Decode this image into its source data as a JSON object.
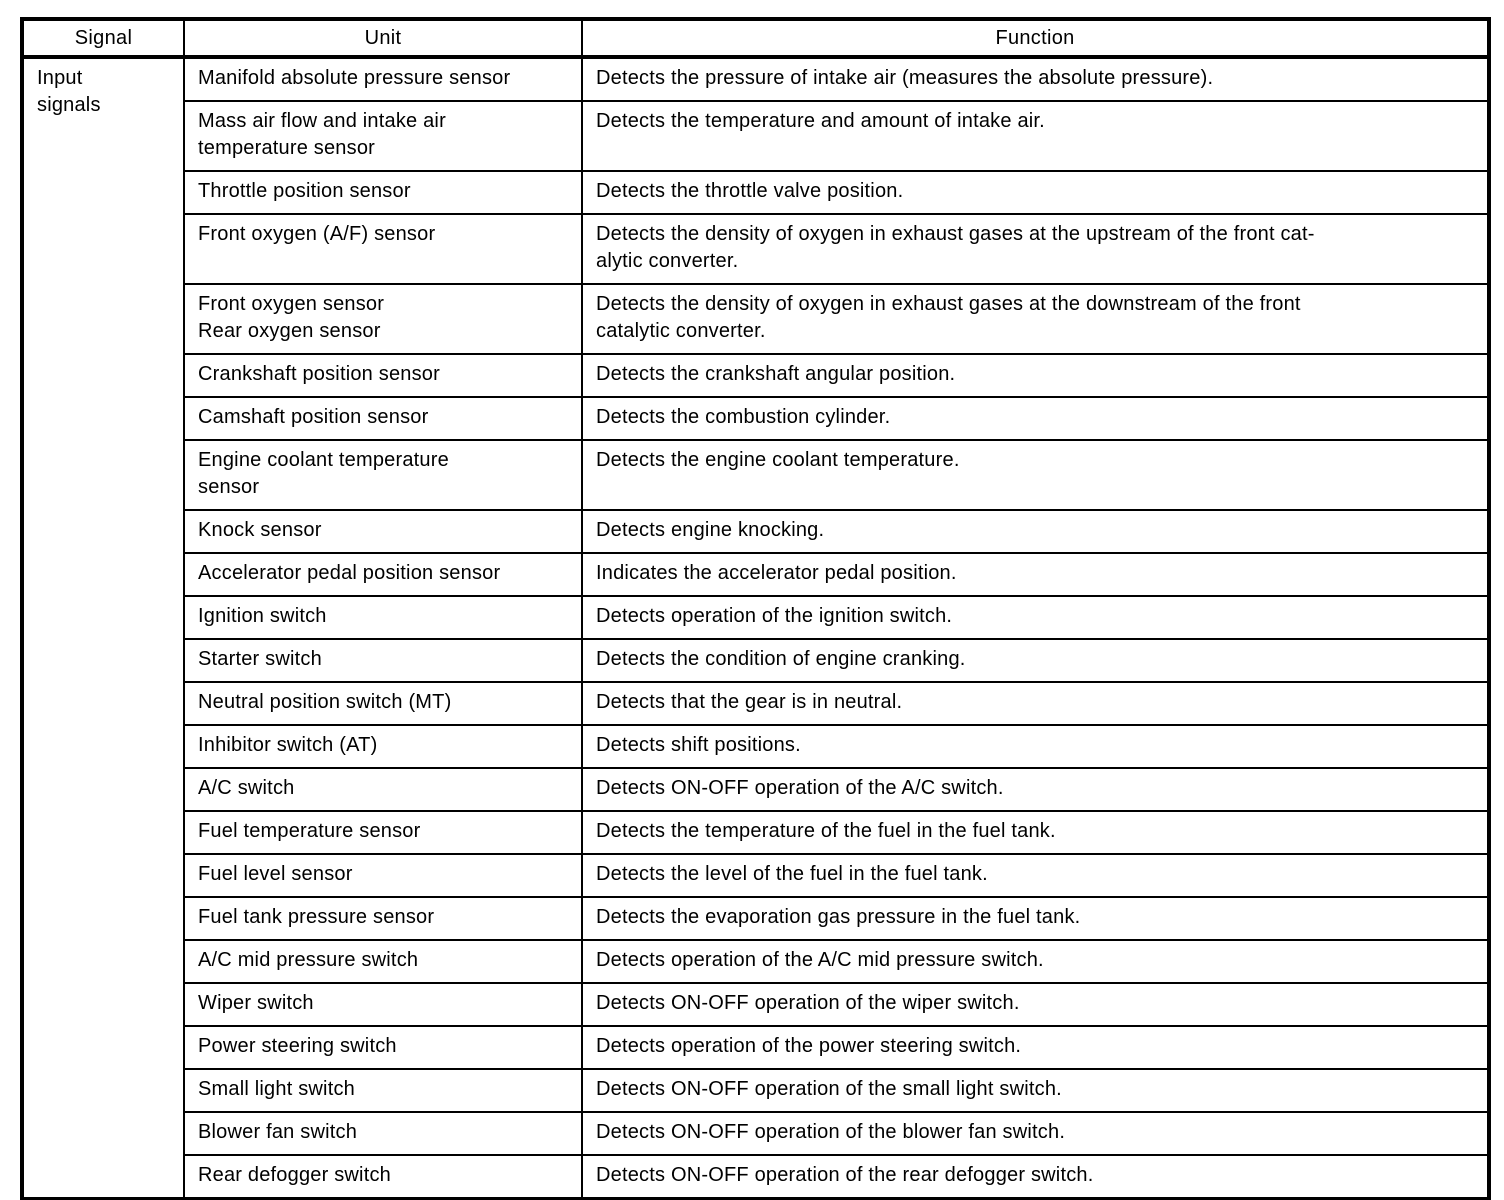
{
  "table": {
    "columns": [
      "Signal",
      "Unit",
      "Function"
    ],
    "signal_group": [
      "Input",
      "signals"
    ],
    "rows": [
      {
        "unit": "Manifold absolute pressure sensor",
        "function": "Detects the pressure of intake air (measures the absolute pressure)."
      },
      {
        "unit": [
          "Mass air flow and intake air",
          "temperature sensor"
        ],
        "function": "Detects the temperature and amount of intake air."
      },
      {
        "unit": "Throttle position sensor",
        "function": "Detects the throttle valve position."
      },
      {
        "unit": "Front oxygen (A/F) sensor",
        "function": [
          "Detects the density of oxygen in exhaust gases at the upstream of the front cat-",
          "alytic converter."
        ]
      },
      {
        "unit": [
          "Front oxygen sensor",
          "Rear oxygen sensor"
        ],
        "function": [
          "Detects the density of oxygen in exhaust gases at the downstream of the front",
          "catalytic converter."
        ]
      },
      {
        "unit": "Crankshaft position sensor",
        "function": "Detects the crankshaft angular position."
      },
      {
        "unit": "Camshaft position sensor",
        "function": "Detects the combustion cylinder."
      },
      {
        "unit": [
          "Engine coolant temperature",
          "sensor"
        ],
        "function": "Detects the engine coolant temperature."
      },
      {
        "unit": "Knock sensor",
        "function": "Detects engine knocking."
      },
      {
        "unit": "Accelerator pedal position sensor",
        "function": "Indicates the accelerator pedal position."
      },
      {
        "unit": "Ignition switch",
        "function": "Detects operation of the ignition switch."
      },
      {
        "unit": "Starter switch",
        "function": "Detects the condition of engine cranking."
      },
      {
        "unit": "Neutral position switch (MT)",
        "function": "Detects that the gear is in neutral."
      },
      {
        "unit": "Inhibitor switch (AT)",
        "function": "Detects shift positions."
      },
      {
        "unit": "A/C switch",
        "function": "Detects ON-OFF operation of the A/C switch."
      },
      {
        "unit": "Fuel temperature sensor",
        "function": "Detects the temperature of the fuel in the fuel tank."
      },
      {
        "unit": "Fuel level sensor",
        "function": "Detects the level of the fuel in the fuel tank."
      },
      {
        "unit": "Fuel tank pressure sensor",
        "function": "Detects the evaporation gas pressure in the fuel tank."
      },
      {
        "unit": "A/C mid pressure switch",
        "function": "Detects operation of the A/C mid pressure switch."
      },
      {
        "unit": "Wiper switch",
        "function": "Detects ON-OFF operation of the wiper switch."
      },
      {
        "unit": "Power steering switch",
        "function": "Detects operation of the power steering switch."
      },
      {
        "unit": "Small light switch",
        "function": "Detects ON-OFF operation of the small light switch."
      },
      {
        "unit": "Blower fan switch",
        "function": "Detects ON-OFF operation of the blower fan switch."
      },
      {
        "unit": "Rear defogger switch",
        "function": "Detects ON-OFF operation of the rear defogger switch."
      }
    ]
  }
}
